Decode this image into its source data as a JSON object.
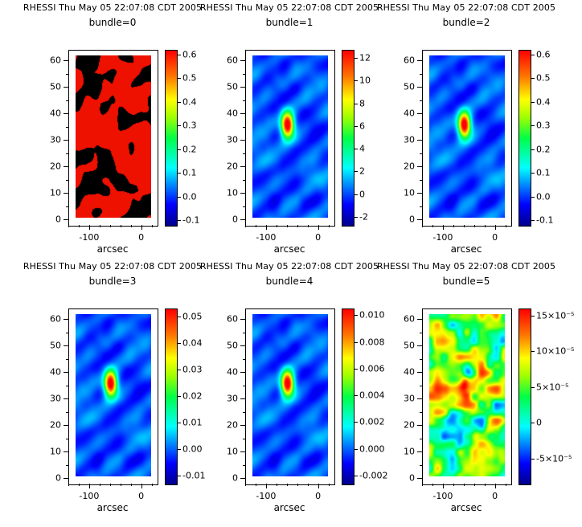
{
  "figure": {
    "background": "#ffffff"
  },
  "colormap": {
    "stops": [
      "#00008c",
      "#0000ff",
      "#00ffff",
      "#00ff46",
      "#a0ff00",
      "#ffff00",
      "#ff7800",
      "#ff0000"
    ],
    "positions": [
      0,
      0.12,
      0.33,
      0.5,
      0.62,
      0.72,
      0.85,
      1
    ]
  },
  "chart_data": [
    {
      "type": "heatmap",
      "title": "RHESSI Thu May 05 22:07:08 CDT 2005",
      "subtitle": "bundle=0",
      "xlabel": "arcsec",
      "xlim": [
        -140,
        30
      ],
      "ylim": [
        -2,
        64
      ],
      "x_ticks": [
        -100,
        0
      ],
      "y_ticks": [
        0,
        10,
        20,
        30,
        40,
        50,
        60
      ],
      "x_minor_step": 20,
      "y_minor_step": 5,
      "style": "binary",
      "seed": 5,
      "palette": {
        "on": "#ee1100",
        "off": "#000000"
      },
      "hotspot": {
        "x": -60,
        "y": 36,
        "sx": 8,
        "sy": 3.2
      },
      "colorbar": {
        "range": [
          -0.12,
          0.62
        ],
        "ticks": [
          {
            "value": 0.6,
            "label": "0.6"
          },
          {
            "value": 0.5,
            "label": "0.5"
          },
          {
            "value": 0.4,
            "label": "0.4"
          },
          {
            "value": 0.3,
            "label": "0.3"
          },
          {
            "value": 0.2,
            "label": "0.2"
          },
          {
            "value": 0.1,
            "label": "0.1"
          },
          {
            "value": 0.0,
            "label": "0.0"
          },
          {
            "value": -0.1,
            "label": "-0.1"
          }
        ]
      }
    },
    {
      "type": "heatmap",
      "title": "RHESSI Thu May 05 22:07:08 CDT 2005",
      "subtitle": "bundle=1",
      "xlabel": "arcsec",
      "xlim": [
        -140,
        30
      ],
      "ylim": [
        -2,
        64
      ],
      "x_ticks": [
        -100,
        0
      ],
      "y_ticks": [
        0,
        10,
        20,
        30,
        40,
        50,
        60
      ],
      "x_minor_step": 20,
      "y_minor_step": 5,
      "style": "smooth",
      "seed": 5,
      "hotspot": {
        "x": -60,
        "y": 36,
        "sx": 8,
        "sy": 3.2
      },
      "colorbar": {
        "range": [
          -2.7,
          12.7
        ],
        "ticks": [
          {
            "value": 12,
            "label": "12"
          },
          {
            "value": 10,
            "label": "10"
          },
          {
            "value": 8,
            "label": "8"
          },
          {
            "value": 6,
            "label": "6"
          },
          {
            "value": 4,
            "label": "4"
          },
          {
            "value": 2,
            "label": "2"
          },
          {
            "value": 0,
            "label": "0"
          },
          {
            "value": -2,
            "label": "-2"
          }
        ]
      }
    },
    {
      "type": "heatmap",
      "title": "RHESSI Thu May 05 22:07:08 CDT 2005",
      "subtitle": "bundle=2",
      "xlabel": "arcsec",
      "xlim": [
        -140,
        30
      ],
      "ylim": [
        -2,
        64
      ],
      "x_ticks": [
        -100,
        0
      ],
      "y_ticks": [
        0,
        10,
        20,
        30,
        40,
        50,
        60
      ],
      "x_minor_step": 20,
      "y_minor_step": 5,
      "style": "smooth",
      "seed": 5,
      "hotspot": {
        "x": -60,
        "y": 36,
        "sx": 8,
        "sy": 3.2
      },
      "colorbar": {
        "range": [
          -0.12,
          0.62
        ],
        "ticks": [
          {
            "value": 0.6,
            "label": "0.6"
          },
          {
            "value": 0.5,
            "label": "0.5"
          },
          {
            "value": 0.4,
            "label": "0.4"
          },
          {
            "value": 0.3,
            "label": "0.3"
          },
          {
            "value": 0.2,
            "label": "0.2"
          },
          {
            "value": 0.1,
            "label": "0.1"
          },
          {
            "value": 0.0,
            "label": "0.0"
          },
          {
            "value": -0.1,
            "label": "-0.1"
          }
        ]
      }
    },
    {
      "type": "heatmap",
      "title": "RHESSI Thu May 05 22:07:08 CDT 2005",
      "subtitle": "bundle=3",
      "xlabel": "arcsec",
      "xlim": [
        -140,
        30
      ],
      "ylim": [
        -2,
        64
      ],
      "x_ticks": [
        -100,
        0
      ],
      "y_ticks": [
        0,
        10,
        20,
        30,
        40,
        50,
        60
      ],
      "x_minor_step": 20,
      "y_minor_step": 5,
      "style": "smooth",
      "seed": 5,
      "hotspot": {
        "x": -60,
        "y": 36,
        "sx": 8,
        "sy": 3.2
      },
      "colorbar": {
        "range": [
          -0.013,
          0.053
        ],
        "ticks": [
          {
            "value": 0.05,
            "label": "0.05"
          },
          {
            "value": 0.04,
            "label": "0.04"
          },
          {
            "value": 0.03,
            "label": "0.03"
          },
          {
            "value": 0.02,
            "label": "0.02"
          },
          {
            "value": 0.01,
            "label": "0.01"
          },
          {
            "value": 0.0,
            "label": "0.00"
          },
          {
            "value": -0.01,
            "label": "-0.01"
          }
        ]
      }
    },
    {
      "type": "heatmap",
      "title": "RHESSI Thu May 05 22:07:08 CDT 2005",
      "subtitle": "bundle=4",
      "xlabel": "arcsec",
      "xlim": [
        -140,
        30
      ],
      "ylim": [
        -2,
        64
      ],
      "x_ticks": [
        -100,
        0
      ],
      "y_ticks": [
        0,
        10,
        20,
        30,
        40,
        50,
        60
      ],
      "x_minor_step": 20,
      "y_minor_step": 5,
      "style": "smooth",
      "seed": 5,
      "hotspot": {
        "x": -60,
        "y": 36,
        "sx": 8,
        "sy": 3.2
      },
      "colorbar": {
        "range": [
          -0.0026,
          0.0105
        ],
        "ticks": [
          {
            "value": 0.01,
            "label": "0.010"
          },
          {
            "value": 0.008,
            "label": "0.008"
          },
          {
            "value": 0.006,
            "label": "0.006"
          },
          {
            "value": 0.004,
            "label": "0.004"
          },
          {
            "value": 0.002,
            "label": "0.002"
          },
          {
            "value": 0.0,
            "label": "0.000"
          },
          {
            "value": -0.002,
            "label": "-0.002"
          }
        ]
      }
    },
    {
      "type": "heatmap",
      "title": "RHESSI Thu May 05 22:07:08 CDT 2005",
      "subtitle": "bundle=5",
      "xlabel": "arcsec",
      "xlim": [
        -140,
        30
      ],
      "ylim": [
        -2,
        64
      ],
      "x_ticks": [
        -100,
        0
      ],
      "y_ticks": [
        0,
        10,
        20,
        30,
        40,
        50,
        60
      ],
      "x_minor_step": 20,
      "y_minor_step": 5,
      "style": "speckle",
      "seed": 9,
      "hotspot": {
        "x": -60,
        "y": 36,
        "sx": 8,
        "sy": 3.2
      },
      "colorbar": {
        "range": [
          -8.5,
          16
        ],
        "ticks": [
          {
            "value": 15,
            "label": "15×10⁻⁵"
          },
          {
            "value": 10,
            "label": "10×10⁻⁵"
          },
          {
            "value": 5,
            "label": "5×10⁻⁵"
          },
          {
            "value": 0,
            "label": "0"
          },
          {
            "value": -5,
            "label": "-5×10⁻⁵"
          }
        ]
      }
    }
  ]
}
